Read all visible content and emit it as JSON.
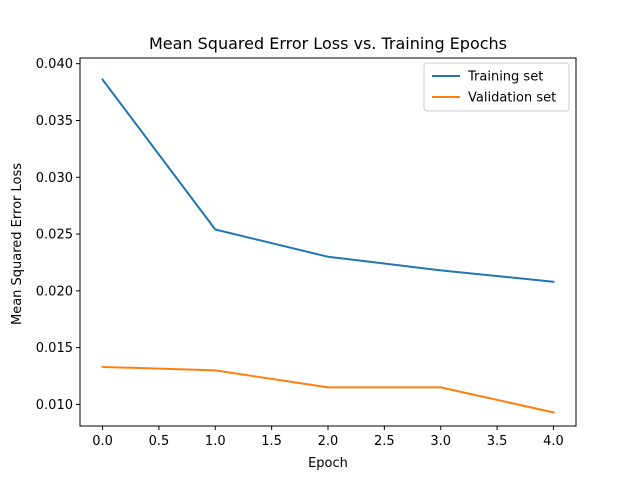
{
  "chart_data": {
    "type": "line",
    "title": "Mean Squared Error Loss vs. Training Epochs",
    "xlabel": "Epoch",
    "ylabel": "Mean Squared Error Loss",
    "x": [
      0.0,
      1.0,
      2.0,
      3.0,
      4.0
    ],
    "xlim": [
      -0.2,
      4.2
    ],
    "ylim": [
      0.0081,
      0.0405
    ],
    "xticks": [
      "0.0",
      "0.5",
      "1.0",
      "1.5",
      "2.0",
      "2.5",
      "3.0",
      "3.5",
      "4.0"
    ],
    "yticks": [
      "0.010",
      "0.015",
      "0.020",
      "0.025",
      "0.030",
      "0.035",
      "0.040"
    ],
    "grid": false,
    "legend": "top-right",
    "series": [
      {
        "name": "Training set",
        "color": "#1f77b4",
        "values": [
          0.0386,
          0.0254,
          0.023,
          0.0218,
          0.0208
        ]
      },
      {
        "name": "Validation set",
        "color": "#ff7f0e",
        "values": [
          0.0133,
          0.013,
          0.0115,
          0.0115,
          0.0093
        ]
      }
    ]
  }
}
